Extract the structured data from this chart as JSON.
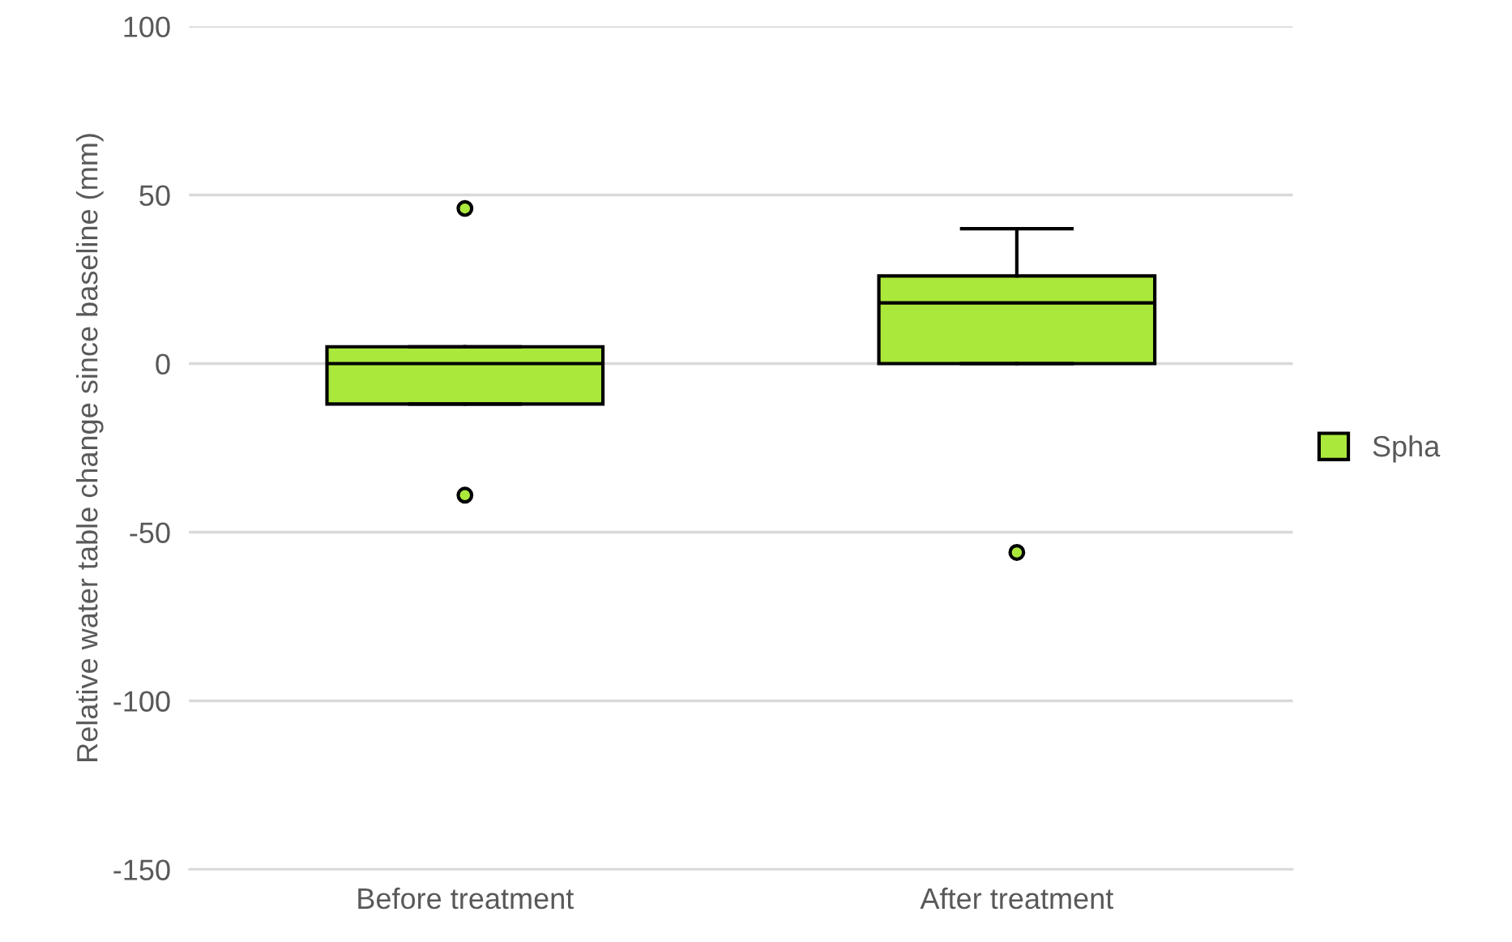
{
  "chart_data": {
    "type": "box",
    "ylabel": "Relative water table change since baseline (mm)",
    "categories": [
      "Before treatment",
      "After treatment"
    ],
    "series": [
      {
        "name": "Spha",
        "color": "#abe83c",
        "boxes": [
          {
            "low": -12,
            "q1": -12,
            "median": 0,
            "q3": 5,
            "high": 5,
            "outliers": [
              46,
              -39
            ]
          },
          {
            "low": 0,
            "q1": 0,
            "median": 18,
            "q3": 26,
            "high": 40,
            "outliers": [
              -56
            ]
          }
        ]
      }
    ],
    "ylim": [
      -150,
      100
    ],
    "yticks": [
      -150,
      -100,
      -50,
      0,
      50,
      100
    ],
    "grid": "y",
    "legend": "right"
  }
}
